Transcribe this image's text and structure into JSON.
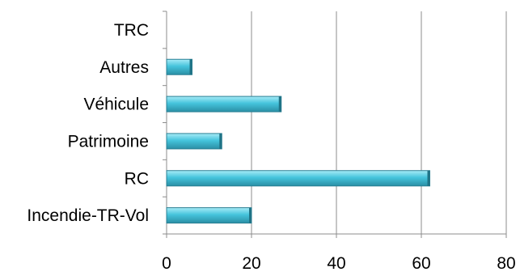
{
  "chart_data": {
    "type": "bar",
    "orientation": "horizontal",
    "categories": [
      "Incendie-TR-Vol",
      "RC",
      "Patrimoine",
      "Véhicule",
      "Autres",
      "TRC"
    ],
    "values": [
      20,
      62,
      13,
      27,
      6,
      0
    ],
    "xlim": [
      0,
      80
    ],
    "xticks": [
      0,
      20,
      40,
      60,
      80
    ],
    "grid": true,
    "legend": "none",
    "bar_color": "#45c4dc",
    "bar_color_dark": "#2a8fa5",
    "bar_color_light": "#a8ecf7"
  }
}
